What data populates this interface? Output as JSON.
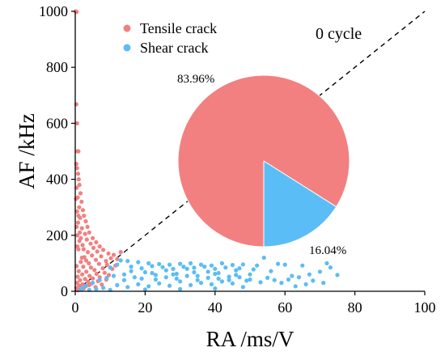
{
  "chart_data": {
    "type": "scatter",
    "title": "",
    "xlabel": "RA /ms/V",
    "ylabel": "AF /kHz",
    "xlim": [
      0,
      100
    ],
    "ylim": [
      0,
      1000
    ],
    "xticks": [
      "0",
      "20",
      "40",
      "60",
      "80",
      "100"
    ],
    "yticks": [
      "0",
      "200",
      "400",
      "600",
      "800",
      "1000"
    ],
    "legend_position": "top-left",
    "grid": false,
    "divider_line": {
      "style": "dashed",
      "color": "#000000",
      "from": [
        0,
        0
      ],
      "to": [
        100,
        1000
      ]
    },
    "series": [
      {
        "name": "Tensile crack",
        "color": "#F28080",
        "points": [
          [
            0.1,
            1000
          ],
          [
            0.4,
            998
          ],
          [
            0.3,
            668
          ],
          [
            0.5,
            600
          ],
          [
            0.6,
            500
          ],
          [
            0.9,
            500
          ],
          [
            0.3,
            455
          ],
          [
            0.5,
            440
          ],
          [
            0.8,
            420
          ],
          [
            1.0,
            400
          ],
          [
            1.2,
            380
          ],
          [
            0.4,
            370
          ],
          [
            1.5,
            350
          ],
          [
            0.7,
            335
          ],
          [
            1.8,
            320
          ],
          [
            1.1,
            300
          ],
          [
            2.2,
            290
          ],
          [
            0.5,
            285
          ],
          [
            2.5,
            270
          ],
          [
            1.4,
            262
          ],
          [
            3.0,
            250
          ],
          [
            0.8,
            245
          ],
          [
            3.5,
            230
          ],
          [
            1.9,
            225
          ],
          [
            4.0,
            210
          ],
          [
            2.8,
            205
          ],
          [
            0.6,
            200
          ],
          [
            5.0,
            190
          ],
          [
            3.3,
            185
          ],
          [
            1.2,
            180
          ],
          [
            6.0,
            175
          ],
          [
            4.4,
            170
          ],
          [
            2.1,
            165
          ],
          [
            7.0,
            160
          ],
          [
            5.2,
            155
          ],
          [
            0.9,
            150
          ],
          [
            8.0,
            148
          ],
          [
            6.3,
            142
          ],
          [
            3.6,
            140
          ],
          [
            13.0,
            140
          ],
          [
            9.5,
            135
          ],
          [
            11.0,
            130
          ],
          [
            4.8,
            128
          ],
          [
            7.4,
            125
          ],
          [
            2.6,
            122
          ],
          [
            10.2,
            118
          ],
          [
            12.0,
            115
          ],
          [
            5.9,
            112
          ],
          [
            8.8,
            108
          ],
          [
            1.6,
            105
          ],
          [
            3.9,
            100
          ],
          [
            6.8,
            98
          ],
          [
            9.1,
            95
          ],
          [
            11.5,
            92
          ],
          [
            0.4,
            90
          ],
          [
            2.3,
            88
          ],
          [
            4.5,
            85
          ],
          [
            7.9,
            82
          ],
          [
            10.6,
            80
          ],
          [
            5.5,
            76
          ],
          [
            1.0,
            72
          ],
          [
            3.2,
            70
          ],
          [
            8.4,
            66
          ],
          [
            6.1,
            62
          ],
          [
            2.0,
            60
          ],
          [
            9.6,
            58
          ],
          [
            4.1,
            55
          ],
          [
            0.7,
            52
          ],
          [
            7.0,
            50
          ],
          [
            5.0,
            46
          ],
          [
            2.8,
            44
          ],
          [
            8.9,
            42
          ],
          [
            1.4,
            40
          ],
          [
            6.5,
            36
          ],
          [
            3.6,
            34
          ],
          [
            0.5,
            30
          ],
          [
            4.7,
            28
          ],
          [
            2.1,
            25
          ],
          [
            7.6,
            24
          ],
          [
            1.1,
            20
          ],
          [
            3.0,
            18
          ],
          [
            5.8,
            15
          ],
          [
            0.3,
            12
          ],
          [
            2.4,
            10
          ],
          [
            1.7,
            6
          ],
          [
            0.8,
            4
          ],
          [
            4.0,
            22
          ],
          [
            0.6,
            160
          ],
          [
            1.3,
            210
          ],
          [
            0.2,
            330
          ],
          [
            0.9,
            270
          ],
          [
            1.6,
            190
          ],
          [
            2.4,
            150
          ],
          [
            0.4,
            230
          ],
          [
            1.9,
            120
          ],
          [
            3.1,
            110
          ]
        ]
      },
      {
        "name": "Shear crack",
        "color": "#5BBDF5",
        "points": [
          [
            13.0,
            110
          ],
          [
            15.0,
            108
          ],
          [
            18.0,
            104
          ],
          [
            21.0,
            100
          ],
          [
            24.0,
            97
          ],
          [
            27.0,
            95
          ],
          [
            30.0,
            98
          ],
          [
            33.0,
            100
          ],
          [
            36.0,
            95
          ],
          [
            39.0,
            92
          ],
          [
            42.0,
            100
          ],
          [
            45.0,
            94
          ],
          [
            48.0,
            96
          ],
          [
            52.0,
            92
          ],
          [
            54.0,
            120
          ],
          [
            58.0,
            98
          ],
          [
            60.0,
            95
          ],
          [
            65.0,
            92
          ],
          [
            72.0,
            100
          ],
          [
            73.0,
            85
          ],
          [
            70.0,
            70
          ],
          [
            75.0,
            58
          ],
          [
            67.0,
            60
          ],
          [
            62.0,
            55
          ],
          [
            55.0,
            48
          ],
          [
            50.0,
            60
          ],
          [
            46.0,
            75
          ],
          [
            44.0,
            52
          ],
          [
            41.0,
            65
          ],
          [
            38.0,
            70
          ],
          [
            35.0,
            55
          ],
          [
            32.0,
            80
          ],
          [
            29.0,
            62
          ],
          [
            26.0,
            75
          ],
          [
            23.0,
            58
          ],
          [
            20.0,
            68
          ],
          [
            17.0,
            50
          ],
          [
            14.0,
            60
          ],
          [
            11.0,
            55
          ],
          [
            9.0,
            48
          ],
          [
            7.0,
            40
          ],
          [
            5.0,
            30
          ],
          [
            3.0,
            20
          ],
          [
            2.0,
            12
          ],
          [
            1.5,
            6
          ],
          [
            10.0,
            85
          ],
          [
            12.0,
            95
          ],
          [
            16.0,
            88
          ],
          [
            19.0,
            82
          ],
          [
            22.0,
            90
          ],
          [
            25.0,
            86
          ],
          [
            28.0,
            80
          ],
          [
            31.0,
            88
          ],
          [
            34.0,
            84
          ],
          [
            37.0,
            88
          ],
          [
            40.0,
            80
          ],
          [
            43.0,
            85
          ],
          [
            47.0,
            82
          ],
          [
            51.0,
            78
          ],
          [
            56.0,
            72
          ],
          [
            59.0,
            30
          ],
          [
            57.0,
            40
          ],
          [
            53.0,
            32
          ],
          [
            49.0,
            38
          ],
          [
            45.0,
            28
          ],
          [
            42.0,
            35
          ],
          [
            39.0,
            25
          ],
          [
            36.0,
            30
          ],
          [
            33.0,
            22
          ],
          [
            30.0,
            35
          ],
          [
            27.0,
            20
          ],
          [
            24.0,
            28
          ],
          [
            21.0,
            18
          ],
          [
            18.0,
            25
          ],
          [
            15.0,
            15
          ],
          [
            12.0,
            22
          ],
          [
            8.0,
            12
          ],
          [
            6.0,
            8
          ],
          [
            4.0,
            5
          ],
          [
            61.0,
            42
          ],
          [
            64.0,
            50
          ],
          [
            68.0,
            38
          ],
          [
            71.0,
            30
          ],
          [
            66.0,
            25
          ],
          [
            63.0,
            18
          ],
          [
            48.0,
            15
          ],
          [
            40.0,
            10
          ],
          [
            30.0,
            8
          ],
          [
            20.0,
            6
          ],
          [
            10.0,
            5
          ],
          [
            14.0,
            40
          ],
          [
            19.0,
            45
          ],
          [
            23.0,
            42
          ],
          [
            26.0,
            50
          ],
          [
            29.0,
            45
          ],
          [
            32.0,
            55
          ],
          [
            35.0,
            40
          ],
          [
            38.0,
            48
          ],
          [
            41.0,
            45
          ],
          [
            44.0,
            40
          ],
          [
            47.0,
            50
          ],
          [
            50.0,
            42
          ],
          [
            16.0,
            72
          ],
          [
            22.0,
            65
          ],
          [
            28.0,
            60
          ],
          [
            34.0,
            68
          ],
          [
            40.0,
            62
          ],
          [
            46.0,
            58
          ]
        ]
      }
    ],
    "inset_pie": {
      "type": "pie",
      "slices": [
        {
          "name": "Tensile crack",
          "value": 83.96,
          "label": "83.96%",
          "color": "#F28080"
        },
        {
          "name": "Shear crack",
          "value": 16.04,
          "label": "16.04%",
          "color": "#5BBDF5"
        }
      ]
    },
    "annotation": "0 cycle"
  }
}
